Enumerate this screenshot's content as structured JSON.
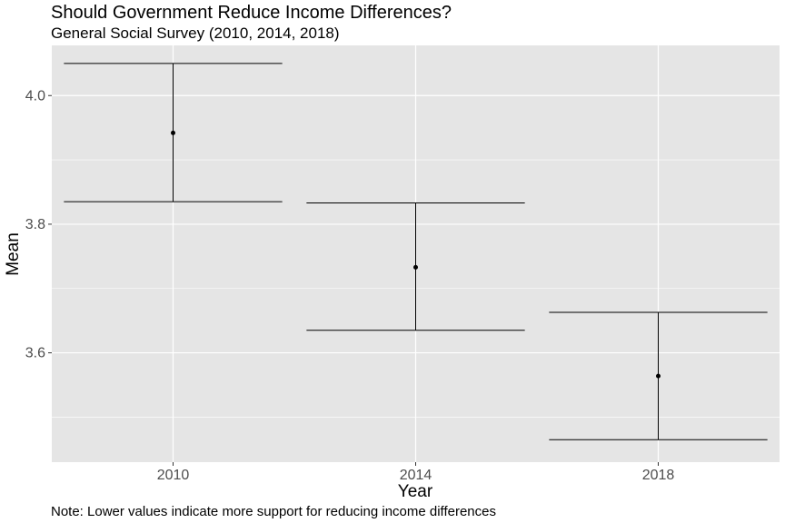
{
  "chart_data": {
    "type": "errorbar",
    "title": "Should Government Reduce Income Differences?",
    "subtitle": "General Social Survey (2010, 2014, 2018)",
    "xlabel": "Year",
    "ylabel": "Mean",
    "caption": "Note: Lower values indicate more support for reducing income differences",
    "categories": [
      "2010",
      "2014",
      "2018"
    ],
    "means": [
      3.942,
      3.733,
      3.564
    ],
    "lower": [
      3.835,
      3.635,
      3.465
    ],
    "upper": [
      4.05,
      3.833,
      3.663
    ],
    "ylim": [
      3.43,
      4.078
    ],
    "yticks": [
      3.6,
      3.8,
      4.0
    ],
    "ytick_labels": [
      "3.6",
      "3.8",
      "4.0"
    ],
    "panel_background": "#e5e5e5",
    "grid": true,
    "grid_color": "#ffffff"
  }
}
